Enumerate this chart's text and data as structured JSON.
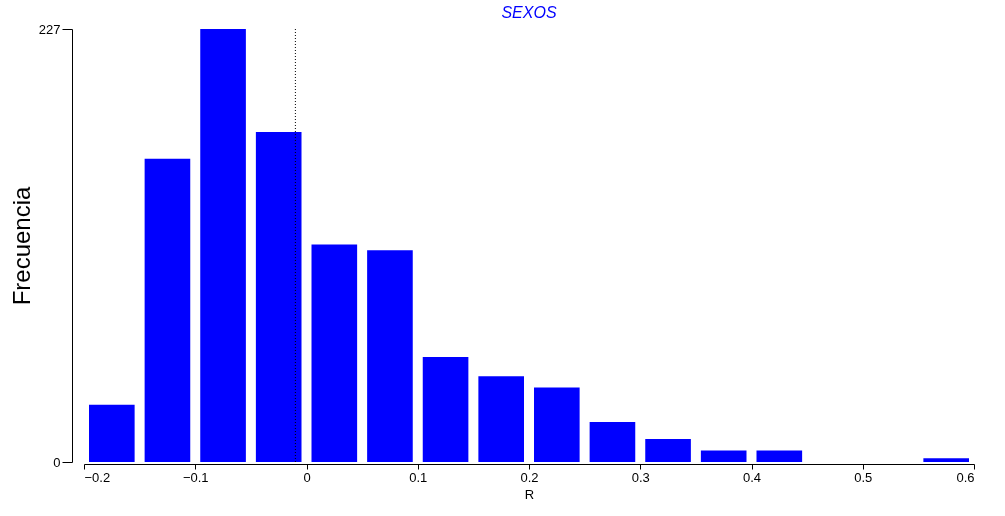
{
  "chart_data": {
    "type": "histogram",
    "title": "SEXOS",
    "xlabel": "R",
    "ylabel": "Frecuencia",
    "bins": [
      -0.2,
      -0.15,
      -0.1,
      -0.05,
      0.0,
      0.05,
      0.1,
      0.15,
      0.2,
      0.25,
      0.3,
      0.35,
      0.4,
      0.45,
      0.5,
      0.55,
      0.6
    ],
    "values": [
      30,
      159,
      227,
      173,
      114,
      111,
      55,
      45,
      39,
      21,
      12,
      6,
      6,
      0,
      0,
      2
    ],
    "color": "#0000ff",
    "xlim": [
      -0.2,
      0.6
    ],
    "xticks": [
      -0.2,
      -0.1,
      0,
      0.1,
      0.2,
      0.3,
      0.4,
      0.5,
      0.6
    ],
    "ylim": [
      0,
      227
    ],
    "yticks": [
      0,
      227
    ],
    "ref_lines": [
      {
        "axis": "x",
        "value": -0.01,
        "line_style": "dotted",
        "color": "#000000"
      }
    ],
    "grid": false
  }
}
